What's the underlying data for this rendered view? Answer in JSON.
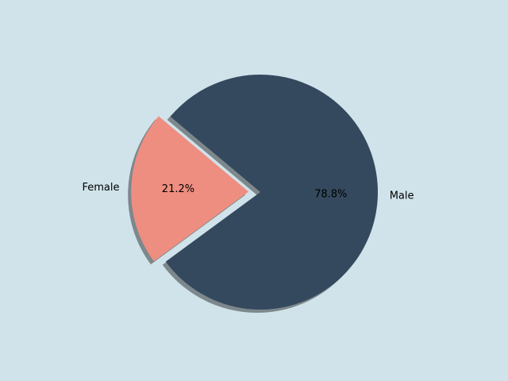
{
  "chart_data": {
    "type": "pie",
    "categories": [
      "Female",
      "Male"
    ],
    "values": [
      21.2,
      78.8
    ],
    "value_labels": [
      "21.2%",
      "78.8%"
    ],
    "colors": [
      "#ee8e80",
      "#34495e"
    ],
    "explode": [
      0.1,
      0
    ],
    "start_angle": 140,
    "shadow": true
  }
}
